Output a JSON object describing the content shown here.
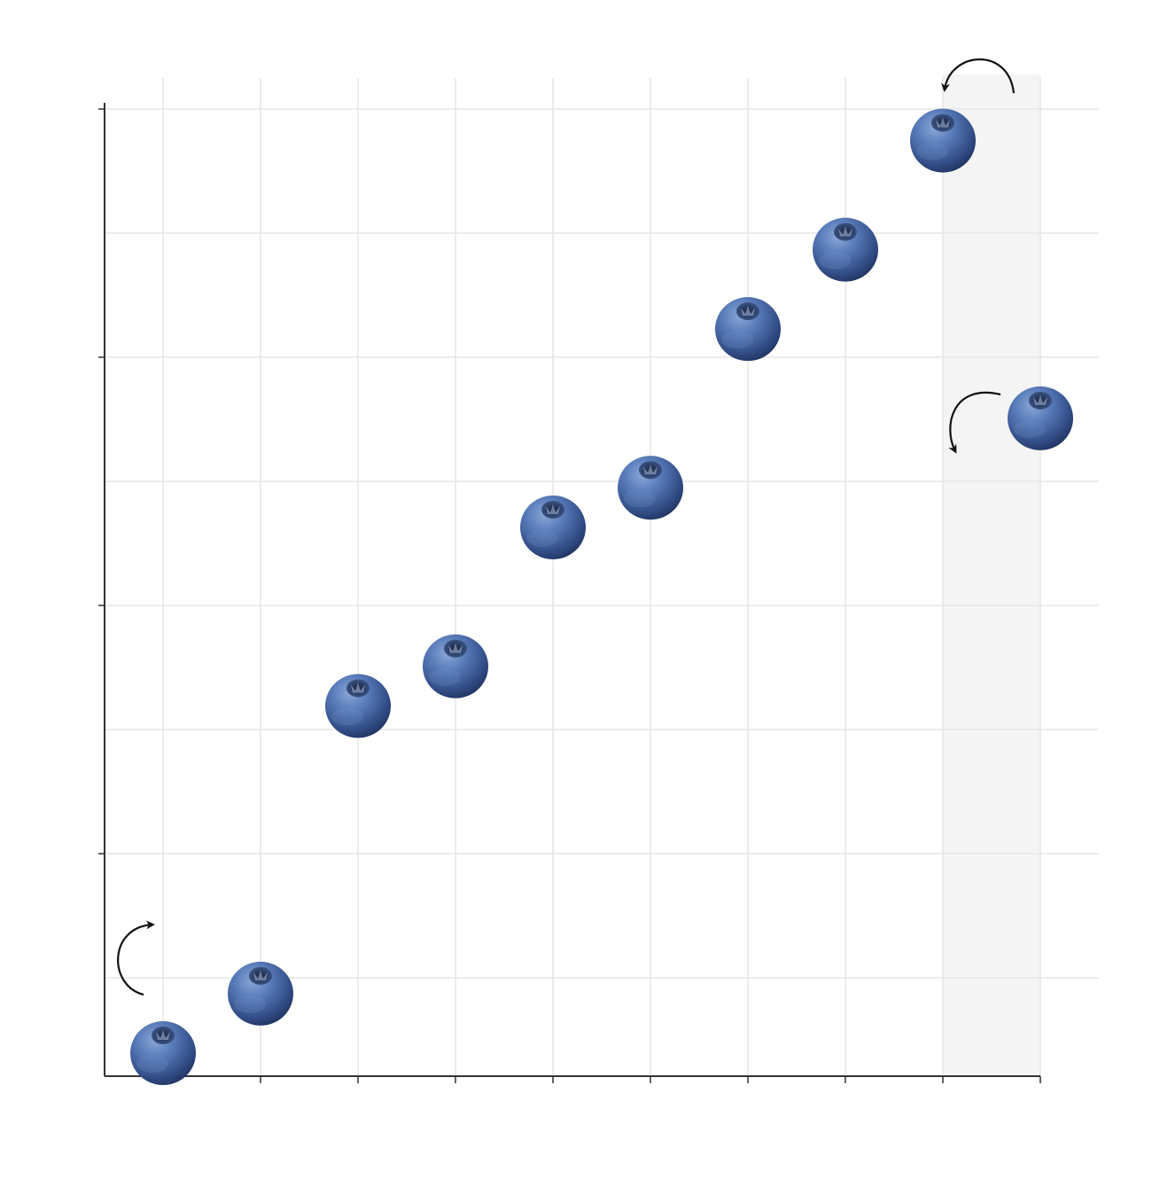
{
  "chart_data": {
    "type": "scatter",
    "title": "",
    "xlabel": "",
    "ylabel": "",
    "x": [
      1,
      2,
      3,
      4,
      5,
      6,
      7,
      8,
      9,
      10
    ],
    "values": [
      0.5,
      1.1,
      4.0,
      4.4,
      5.8,
      6.2,
      7.8,
      8.6,
      9.7,
      6.9
    ],
    "ylim": [
      0,
      10
    ],
    "xlim": [
      0.4,
      10.6
    ],
    "grid": true,
    "marker": "blueberry",
    "highlighted_x": 10,
    "highlight_color": "#f4f4f4",
    "marker_color": "#4a6ea8",
    "annotations": [
      {
        "type": "curved-arrow",
        "near_x": 1,
        "direction": "up"
      },
      {
        "type": "curved-arrow",
        "near_x": 9,
        "direction": "left"
      },
      {
        "type": "curved-arrow",
        "near_x": 10,
        "direction": "down"
      }
    ]
  }
}
